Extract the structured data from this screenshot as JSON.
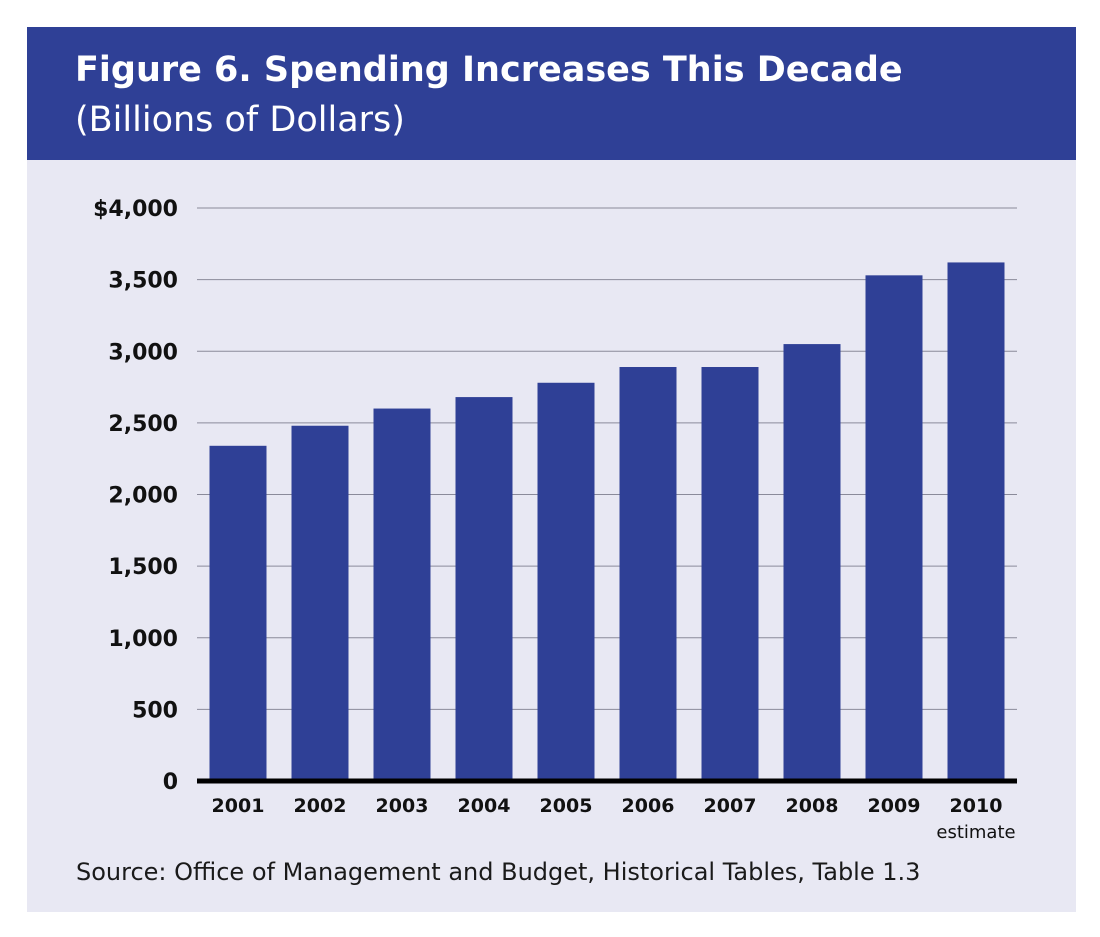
{
  "header": {
    "title_bold": "Figure 6. Spending Increases This Decade",
    "title_normal": " (Billions of Dollars)"
  },
  "source": "Source: Office of Management and Budget, Historical Tables, Table 1.3",
  "colors": {
    "header": "#2f4096",
    "bar": "#2f4096",
    "background": "#e8e8f3"
  },
  "chart_data": {
    "type": "bar",
    "title": "Figure 6. Spending Increases This Decade (Billions of Dollars)",
    "categories": [
      "2001",
      "2002",
      "2003",
      "2004",
      "2005",
      "2006",
      "2007",
      "2008",
      "2009",
      "2010"
    ],
    "category_notes": [
      "",
      "",
      "",
      "",
      "",
      "",
      "",
      "",
      "",
      "estimate"
    ],
    "values": [
      2340,
      2480,
      2600,
      2680,
      2780,
      2890,
      2890,
      3050,
      3530,
      3620
    ],
    "ylim": [
      0,
      4000
    ],
    "yticks": [
      0,
      500,
      1000,
      1500,
      2000,
      2500,
      3000,
      3500,
      4000
    ],
    "ytick_labels": [
      "0",
      "500",
      "1,000",
      "1,500",
      "2,000",
      "2,500",
      "3,000",
      "3,500",
      "$4,000"
    ],
    "xlabel": "",
    "ylabel": "",
    "grid": true,
    "legend": false
  }
}
